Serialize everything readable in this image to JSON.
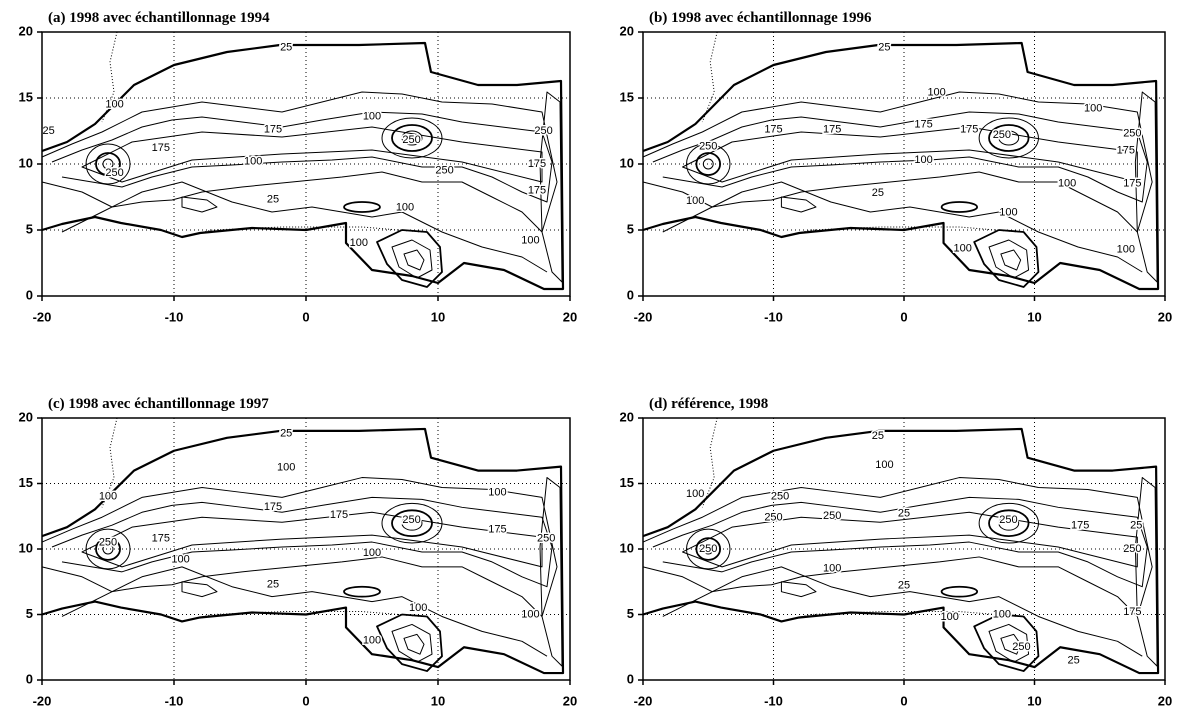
{
  "chart_data": [
    {
      "type": "contour",
      "title": "(a) 1998 avec échantillonnage 1994",
      "xlim": [
        -20,
        20
      ],
      "ylim": [
        0,
        20
      ],
      "xticks": [
        -20,
        -10,
        0,
        10,
        20
      ],
      "yticks": [
        0,
        5,
        10,
        15,
        20
      ],
      "grid": true,
      "color": "#000000",
      "contour_labels": [
        {
          "value": 25,
          "x": -1.5,
          "y": 18.8
        },
        {
          "value": 100,
          "x": -14.5,
          "y": 14.5
        },
        {
          "value": 25,
          "x": -19.5,
          "y": 12.5
        },
        {
          "value": 175,
          "x": -2.5,
          "y": 12.6
        },
        {
          "value": 250,
          "x": 8,
          "y": 11.8
        },
        {
          "value": 175,
          "x": -11,
          "y": 11.2
        },
        {
          "value": 100,
          "x": -4,
          "y": 10.2
        },
        {
          "value": 250,
          "x": -14.5,
          "y": 9.3
        },
        {
          "value": 25,
          "x": -2.5,
          "y": 7.3
        },
        {
          "value": 100,
          "x": 7.5,
          "y": 6.7
        },
        {
          "value": 100,
          "x": 4,
          "y": 4
        },
        {
          "value": 250,
          "x": 10.5,
          "y": 9.5
        },
        {
          "value": 250,
          "x": 18,
          "y": 12.5
        },
        {
          "value": 175,
          "x": 17.5,
          "y": 10
        },
        {
          "value": 175,
          "x": 17.5,
          "y": 8
        },
        {
          "value": 100,
          "x": 17,
          "y": 4.2
        },
        {
          "value": 100,
          "x": 5,
          "y": 13.6
        }
      ]
    },
    {
      "type": "contour",
      "title": "(b) 1998 avec échantillonnage 1996",
      "xlim": [
        -20,
        20
      ],
      "ylim": [
        0,
        20
      ],
      "xticks": [
        -20,
        -10,
        0,
        10,
        20
      ],
      "yticks": [
        0,
        5,
        10,
        15,
        20
      ],
      "grid": true,
      "color": "#000000",
      "contour_labels": [
        {
          "value": 25,
          "x": -1.5,
          "y": 18.8
        },
        {
          "value": 100,
          "x": 2.5,
          "y": 15.4
        },
        {
          "value": 100,
          "x": 14.5,
          "y": 14.2
        },
        {
          "value": 175,
          "x": -10,
          "y": 12.6
        },
        {
          "value": 175,
          "x": -5.5,
          "y": 12.6
        },
        {
          "value": 175,
          "x": 1.5,
          "y": 13
        },
        {
          "value": 175,
          "x": 5,
          "y": 12.6
        },
        {
          "value": 250,
          "x": 7.5,
          "y": 12.2
        },
        {
          "value": 250,
          "x": 17.5,
          "y": 12.3
        },
        {
          "value": 250,
          "x": -15,
          "y": 11.3
        },
        {
          "value": 175,
          "x": 17,
          "y": 11
        },
        {
          "value": 100,
          "x": 1.5,
          "y": 10.3
        },
        {
          "value": 175,
          "x": 17.5,
          "y": 8.5
        },
        {
          "value": 100,
          "x": 12.5,
          "y": 8.5
        },
        {
          "value": 100,
          "x": -16,
          "y": 7.2
        },
        {
          "value": 25,
          "x": -2,
          "y": 7.8
        },
        {
          "value": 100,
          "x": 8,
          "y": 6.3
        },
        {
          "value": 100,
          "x": 4.5,
          "y": 3.6
        },
        {
          "value": 100,
          "x": 17,
          "y": 3.5
        }
      ]
    },
    {
      "type": "contour",
      "title": "(c) 1998 avec échantillonnage 1997",
      "xlim": [
        -20,
        20
      ],
      "ylim": [
        0,
        20
      ],
      "xticks": [
        -20,
        -10,
        0,
        10,
        20
      ],
      "yticks": [
        0,
        5,
        10,
        15,
        20
      ],
      "grid": true,
      "color": "#000000",
      "contour_labels": [
        {
          "value": 25,
          "x": -1.5,
          "y": 18.8
        },
        {
          "value": 100,
          "x": -1.5,
          "y": 16.2
        },
        {
          "value": 100,
          "x": -15,
          "y": 14
        },
        {
          "value": 175,
          "x": -2.5,
          "y": 13.2
        },
        {
          "value": 175,
          "x": 2.5,
          "y": 12.6
        },
        {
          "value": 250,
          "x": 8,
          "y": 12.2
        },
        {
          "value": 100,
          "x": 14.5,
          "y": 14.3
        },
        {
          "value": 175,
          "x": 14.5,
          "y": 11.5
        },
        {
          "value": 250,
          "x": 18.2,
          "y": 10.8
        },
        {
          "value": 250,
          "x": -15,
          "y": 10.5
        },
        {
          "value": 175,
          "x": -11,
          "y": 10.8
        },
        {
          "value": 100,
          "x": -9.5,
          "y": 9.2
        },
        {
          "value": 100,
          "x": 5,
          "y": 9.7
        },
        {
          "value": 25,
          "x": -2.5,
          "y": 7.3
        },
        {
          "value": 100,
          "x": 8.5,
          "y": 5.5
        },
        {
          "value": 100,
          "x": 5,
          "y": 3
        },
        {
          "value": 100,
          "x": 17,
          "y": 5
        }
      ]
    },
    {
      "type": "contour",
      "title": "(d) référence, 1998",
      "xlim": [
        -20,
        20
      ],
      "ylim": [
        0,
        20
      ],
      "xticks": [
        -20,
        -10,
        0,
        10,
        20
      ],
      "yticks": [
        0,
        5,
        10,
        15,
        20
      ],
      "grid": true,
      "color": "#000000",
      "contour_labels": [
        {
          "value": 25,
          "x": -2,
          "y": 18.6
        },
        {
          "value": 100,
          "x": -1.5,
          "y": 16.4
        },
        {
          "value": 100,
          "x": -16,
          "y": 14.2
        },
        {
          "value": 250,
          "x": -9.5,
          "y": 14
        },
        {
          "value": 250,
          "x": -10,
          "y": 12.4
        },
        {
          "value": 250,
          "x": -5.5,
          "y": 12.5
        },
        {
          "value": 25,
          "x": 0,
          "y": 12.7
        },
        {
          "value": 250,
          "x": 8,
          "y": 12.2
        },
        {
          "value": 175,
          "x": 13.5,
          "y": 11.8
        },
        {
          "value": 25,
          "x": 17.8,
          "y": 11.8
        },
        {
          "value": 250,
          "x": -15,
          "y": 10
        },
        {
          "value": 250,
          "x": 17.5,
          "y": 10
        },
        {
          "value": 100,
          "x": -5.5,
          "y": 8.5
        },
        {
          "value": 25,
          "x": 0,
          "y": 7.2
        },
        {
          "value": 100,
          "x": 7.5,
          "y": 5
        },
        {
          "value": 100,
          "x": 3.5,
          "y": 4.8
        },
        {
          "value": 175,
          "x": 17.5,
          "y": 5.2
        },
        {
          "value": 250,
          "x": 9,
          "y": 2.5
        },
        {
          "value": 25,
          "x": 13,
          "y": 1.5
        }
      ]
    }
  ]
}
